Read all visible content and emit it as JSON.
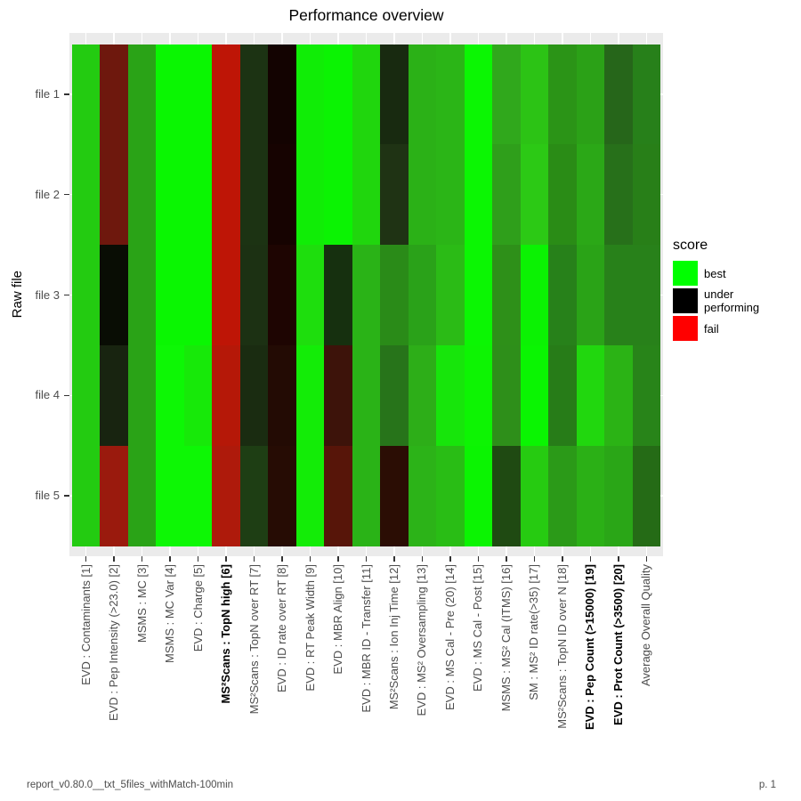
{
  "title": "Performance overview",
  "y_axis": {
    "title": "Raw file"
  },
  "legend": {
    "title": "score",
    "items": [
      {
        "label": "best",
        "color": "#00FF00"
      },
      {
        "label": "under performing",
        "color": "#000000"
      },
      {
        "label": "fail",
        "color": "#FF0000"
      }
    ]
  },
  "footer": {
    "left": "report_v0.80.0__txt_5files_withMatch-100min",
    "right": "p. 1"
  },
  "chart_data": {
    "type": "heatmap",
    "title": "Performance overview",
    "xlabel": "",
    "ylabel": "Raw file",
    "legend_title": "score",
    "rows": [
      "file 1",
      "file 2",
      "file 3",
      "file 4",
      "file 5"
    ],
    "columns": [
      "EVD : Contaminants [1]",
      "EVD : Pep Intensity (>23.0) [2]",
      "MSMS : MC [3]",
      "MSMS : MC Var [4]",
      "EVD : Charge [5]",
      "MS²Scans : TopN high [6]",
      "MS²Scans : TopN over RT [7]",
      "EVD : ID rate over RT [8]",
      "EVD : RT Peak Width [9]",
      "EVD : MBR Align [10]",
      "EVD : MBR ID - Transfer [11]",
      "MS²Scans : Ion Inj Time [12]",
      "EVD : MS² Oversampling [13]",
      "EVD : MS Cal - Pre (20) [14]",
      "EVD : MS Cal - Post [15]",
      "MSMS : MS² Cal (ITMS) [16]",
      "SM : MS² ID rate(>35) [17]",
      "MS²Scans : TopN ID over N [18]",
      "EVD : Pep Count (>15000) [19]",
      "EVD : Prot Count (>3500) [20]",
      "Average Overall Quality"
    ],
    "bold_column_indices": [
      5,
      18,
      19
    ],
    "score_scale": {
      "best": "#00FF00",
      "under_performing": "#000000",
      "fail": "#FF0000"
    },
    "cell_colors": [
      [
        "#23CB11",
        "#6E180D",
        "#2AA317",
        "#0AF602",
        "#0AF602",
        "#BE1506",
        "#1C3313",
        "#130301",
        "#10ED06",
        "#0BF303",
        "#20D60D",
        "#182A10",
        "#2BB117",
        "#2BB517",
        "#0BF603",
        "#30A81C",
        "#2CC315",
        "#2B9417",
        "#2BA117",
        "#26661A",
        "#27801A"
      ],
      [
        "#23CB11",
        "#6E180D",
        "#2AA317",
        "#0AF602",
        "#0AF602",
        "#BE1506",
        "#1C3313",
        "#160301",
        "#10ED06",
        "#0BF303",
        "#20D60D",
        "#1F3314",
        "#2BB117",
        "#2BB517",
        "#0BF603",
        "#2F9F1B",
        "#2CC915",
        "#2A8C16",
        "#2BA817",
        "#27701A",
        "#287F18"
      ],
      [
        "#23CB11",
        "#090D04",
        "#2AA317",
        "#0AF602",
        "#0AF602",
        "#BE1506",
        "#1C3113",
        "#1E0502",
        "#1EDE0D",
        "#16300F",
        "#2AB317",
        "#2A8B18",
        "#2AA219",
        "#2BBB16",
        "#0BF603",
        "#2E9019",
        "#0BF203",
        "#27811A",
        "#2AA317",
        "#28811A",
        "#28811A"
      ],
      [
        "#23CB11",
        "#182410",
        "#2AA317",
        "#0DF705",
        "#17E909",
        "#B51808",
        "#1A2C11",
        "#230B04",
        "#13EC07",
        "#3D130A",
        "#2AB317",
        "#27741A",
        "#2DAE18",
        "#17E50B",
        "#0DF403",
        "#2E8F1A",
        "#0AF502",
        "#277C18",
        "#21D70E",
        "#2BB315",
        "#288419"
      ],
      [
        "#23CB11",
        "#9A1A0D",
        "#2AA317",
        "#0DF705",
        "#0DF705",
        "#AE1A0B",
        "#1E3E14",
        "#260C04",
        "#13EC07",
        "#571509",
        "#2AB317",
        "#2B0D04",
        "#2CB318",
        "#29BD15",
        "#0BF402",
        "#1F4A12",
        "#26CB11",
        "#2B9A18",
        "#2BB016",
        "#2AA617",
        "#256B16"
      ]
    ]
  }
}
